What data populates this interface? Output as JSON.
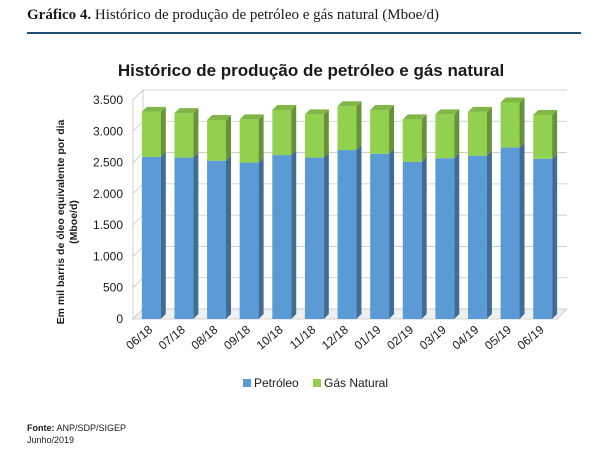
{
  "caption": {
    "label": "Gráfico 4.",
    "text": "Histórico de produção de petróleo e gás natural (Mboe/d)"
  },
  "chart_data": {
    "type": "bar",
    "stacked": true,
    "title": "Histórico de produção de petróleo e gás natural",
    "ylabel_line1": "Em mil barris de óleo equivalente por dia",
    "ylabel_line2": "(Mboe/d)",
    "xlabel": "",
    "ylim": [
      0,
      3500
    ],
    "yticks": [
      0,
      500,
      1000,
      1500,
      2000,
      2500,
      3000,
      3500
    ],
    "ytick_labels": [
      "0",
      "500",
      "1.000",
      "1.500",
      "2.000",
      "2.500",
      "3.000",
      "3.500"
    ],
    "categories": [
      "06/18",
      "07/18",
      "08/18",
      "09/18",
      "10/18",
      "11/18",
      "12/18",
      "01/19",
      "02/19",
      "03/19",
      "04/19",
      "05/19",
      "06/19"
    ],
    "series": [
      {
        "name": "Petróleo",
        "color": "#5b9bd5",
        "values": [
          2590,
          2580,
          2530,
          2500,
          2620,
          2580,
          2700,
          2640,
          2510,
          2570,
          2610,
          2740,
          2560
        ]
      },
      {
        "name": "Gás Natural",
        "color": "#92d050",
        "values": [
          720,
          710,
          650,
          690,
          720,
          690,
          700,
          700,
          680,
          700,
          700,
          720,
          700
        ]
      }
    ],
    "legend_position": "bottom",
    "grid": true
  },
  "source": {
    "label": "Fonte:",
    "text": "ANP/SDP/SIGEP",
    "date": "Junho/2019"
  }
}
